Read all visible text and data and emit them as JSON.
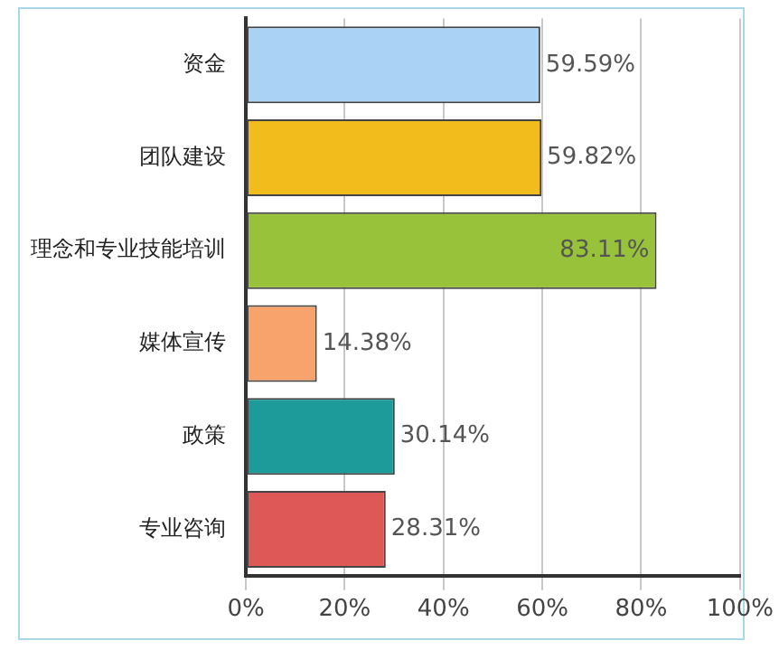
{
  "chart_data": {
    "type": "bar",
    "orientation": "horizontal",
    "categories": [
      "资金",
      "团队建设",
      "理念和专业技能培训",
      "媒体宣传",
      "政策",
      "专业咨询"
    ],
    "values": [
      59.59,
      59.82,
      83.11,
      14.38,
      30.14,
      28.31
    ],
    "colors": [
      "#a9d2f5",
      "#f2bd1c",
      "#98c23a",
      "#f8a36b",
      "#1d9b9b",
      "#df5858"
    ],
    "value_labels": [
      "59.59%",
      "59.82%",
      "83.11%",
      "14.38%",
      "30.14%",
      "28.31%"
    ],
    "xlim": [
      0,
      100
    ],
    "xticks": [
      {
        "value": 0,
        "label": "0%"
      },
      {
        "value": 20,
        "label": "20%"
      },
      {
        "value": 40,
        "label": "40%"
      },
      {
        "value": 60,
        "label": "60%"
      },
      {
        "value": 80,
        "label": "80%"
      },
      {
        "value": 100,
        "label": "100%"
      }
    ],
    "grid": "x",
    "legend": false
  }
}
